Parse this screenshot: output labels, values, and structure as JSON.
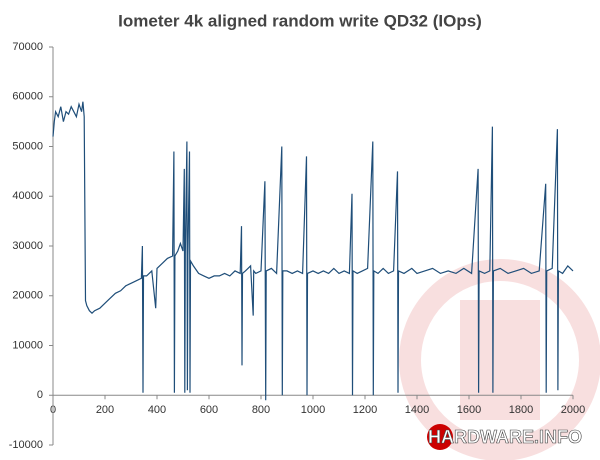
{
  "chart_data": {
    "type": "line",
    "title": "Iometer 4k aligned random write QD32 (IOps)",
    "logo_text": "HARDWARE.INFO",
    "xlim": [
      0,
      2000
    ],
    "xticks": [
      0,
      200,
      400,
      600,
      800,
      1000,
      1200,
      1400,
      1600,
      1800,
      2000
    ],
    "ylim": [
      -10000,
      70000
    ],
    "yticks": [
      -10000,
      0,
      10000,
      20000,
      30000,
      40000,
      50000,
      60000,
      70000
    ],
    "grid": false,
    "series": [
      {
        "color": "#1f4e79",
        "x": [
          0,
          5,
          10,
          20,
          30,
          40,
          50,
          60,
          70,
          80,
          90,
          100,
          110,
          115,
          120,
          125,
          130,
          140,
          150,
          160,
          180,
          200,
          220,
          240,
          260,
          280,
          300,
          320,
          340,
          344,
          346,
          348,
          360,
          380,
          395,
          400,
          420,
          440,
          460,
          465,
          467,
          469,
          480,
          490,
          500,
          505,
          507,
          509,
          515,
          517,
          519,
          525,
          527,
          529,
          540,
          560,
          580,
          600,
          620,
          640,
          660,
          680,
          700,
          720,
          725,
          727,
          729,
          740,
          760,
          770,
          772,
          780,
          800,
          815,
          818,
          820,
          840,
          860,
          880,
          882,
          884,
          900,
          920,
          940,
          960,
          975,
          977,
          979,
          1000,
          1020,
          1040,
          1060,
          1080,
          1100,
          1120,
          1140,
          1150,
          1152,
          1154,
          1170,
          1190,
          1210,
          1230,
          1232,
          1234,
          1250,
          1270,
          1290,
          1310,
          1325,
          1327,
          1329,
          1350,
          1380,
          1400,
          1430,
          1460,
          1490,
          1520,
          1550,
          1580,
          1610,
          1635,
          1637,
          1639,
          1660,
          1680,
          1690,
          1692,
          1694,
          1720,
          1750,
          1780,
          1810,
          1840,
          1870,
          1895,
          1897,
          1899,
          1920,
          1940,
          1942,
          1944,
          1960,
          1980,
          2000
        ],
        "values": [
          52000,
          55000,
          57000,
          56000,
          58000,
          55000,
          57000,
          56500,
          58000,
          57000,
          56000,
          58500,
          57000,
          59000,
          56000,
          19000,
          18000,
          17000,
          16500,
          17000,
          17500,
          18500,
          19500,
          20500,
          21000,
          22000,
          22500,
          23000,
          23500,
          30000,
          500,
          24000,
          24000,
          25000,
          17500,
          25500,
          26500,
          27500,
          28000,
          49000,
          500,
          28000,
          29000,
          30500,
          29000,
          45500,
          500,
          28500,
          51000,
          1000,
          28000,
          49000,
          500,
          27000,
          26000,
          24500,
          24000,
          23500,
          24000,
          24000,
          24500,
          24000,
          25000,
          24500,
          34000,
          6000,
          24500,
          25000,
          26000,
          16000,
          25000,
          24500,
          25000,
          43000,
          -1000,
          25000,
          25500,
          24500,
          50000,
          0,
          25000,
          25000,
          24500,
          25000,
          24500,
          48000,
          0,
          24500,
          25000,
          24500,
          25000,
          24500,
          25500,
          24500,
          25000,
          24500,
          40500,
          0,
          25000,
          24500,
          25000,
          25500,
          51000,
          0,
          25000,
          24500,
          25500,
          24500,
          25000,
          45000,
          500,
          25000,
          24500,
          25500,
          24500,
          25000,
          25500,
          24500,
          25000,
          24500,
          25500,
          24500,
          45500,
          500,
          25000,
          24500,
          25000,
          54000,
          500,
          25000,
          25500,
          24500,
          25000,
          25500,
          24500,
          25000,
          42500,
          500,
          25000,
          25500,
          53500,
          1000,
          25000,
          24500,
          26000,
          25000
        ]
      }
    ]
  }
}
